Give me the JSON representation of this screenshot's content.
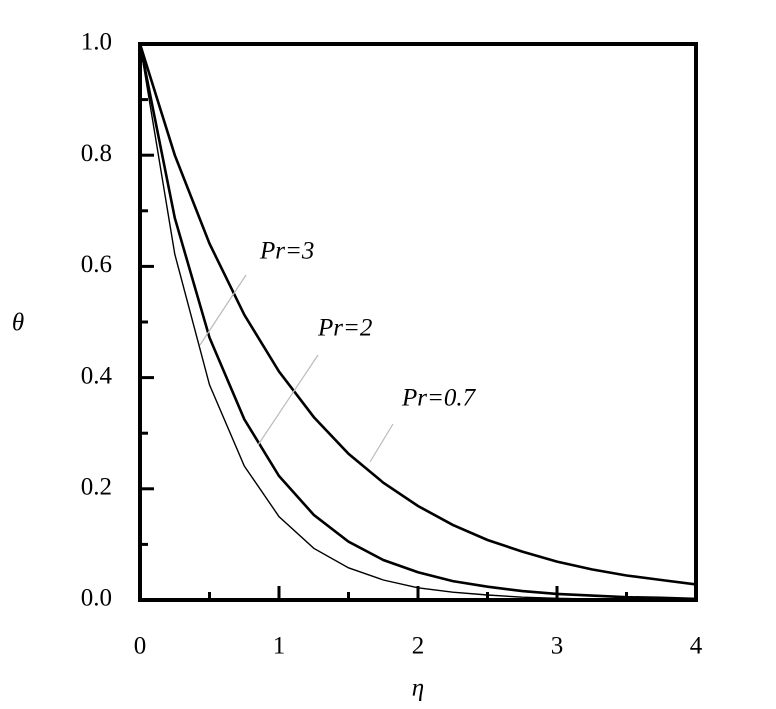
{
  "chart_data": {
    "type": "line",
    "xlabel": "η",
    "ylabel": "θ",
    "x": [
      0,
      0.25,
      0.5,
      0.75,
      1,
      1.25,
      1.5,
      1.75,
      2,
      2.25,
      2.5,
      2.75,
      3,
      3.25,
      3.5,
      3.75,
      4
    ],
    "series": [
      {
        "name": "Pr=0.7",
        "color": "#000000",
        "values": [
          1,
          0.8,
          0.641,
          0.513,
          0.411,
          0.329,
          0.263,
          0.211,
          0.169,
          0.135,
          0.108,
          0.087,
          0.069,
          0.055,
          0.044,
          0.036,
          0.028
        ]
      },
      {
        "name": "Pr=2",
        "color": "#000000",
        "values": [
          1,
          0.687,
          0.472,
          0.325,
          0.223,
          0.153,
          0.105,
          0.072,
          0.05,
          0.034,
          0.024,
          0.016,
          0.011,
          0.008,
          0.005,
          0.004,
          0.002
        ]
      },
      {
        "name": "Pr=3",
        "color": "#000000",
        "values": [
          1,
          0.622,
          0.387,
          0.241,
          0.15,
          0.093,
          0.058,
          0.036,
          0.022,
          0.014,
          0.009,
          0.005,
          0.003,
          0.002,
          0.001,
          0.001,
          0.0
        ]
      }
    ],
    "xlim": [
      0,
      4
    ],
    "ylim": [
      0,
      1
    ],
    "xticks": [
      0,
      1,
      2,
      3,
      4
    ],
    "yticks": [
      {
        "value": 0,
        "label": "0.0"
      },
      0.2,
      0.4,
      0.6,
      0.8,
      {
        "value": 1,
        "label": "1.0"
      }
    ],
    "xminorticks": [
      0.5,
      1.5,
      2.5,
      3.5
    ],
    "yminorticks": [
      0.1,
      0.3,
      0.5,
      0.7,
      0.9
    ],
    "grid": false
  }
}
